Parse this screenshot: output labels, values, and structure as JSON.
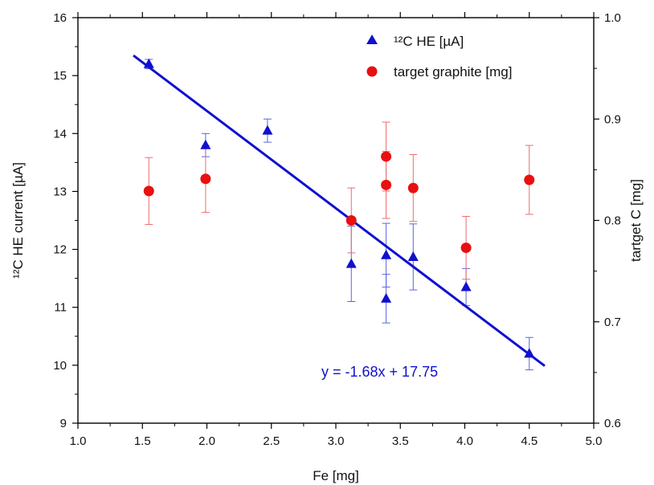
{
  "chart_data": {
    "type": "scatter",
    "xlabel": "Fe [mg]",
    "ylabel_left": "¹²C HE current [µA]",
    "ylabel_right": "tartget C [mg]",
    "xlim": [
      1.0,
      5.0
    ],
    "ylim_left": [
      9,
      16
    ],
    "ylim_right": [
      0.6,
      1.0
    ],
    "x_ticks": [
      1.0,
      1.5,
      2.0,
      2.5,
      3.0,
      3.5,
      4.0,
      4.5,
      5.0
    ],
    "y_left_ticks": [
      9,
      10,
      11,
      12,
      13,
      14,
      15,
      16
    ],
    "y_right_ticks": [
      0.6,
      0.7,
      0.8,
      0.9,
      1.0
    ],
    "x_tick_labels": [
      "1.0",
      "1.5",
      "2.0",
      "2.5",
      "3.0",
      "3.5",
      "4.0",
      "4.5",
      "5.0"
    ],
    "y_left_tick_labels": [
      "9",
      "10",
      "11",
      "12",
      "13",
      "14",
      "15",
      "16"
    ],
    "y_right_tick_labels": [
      "0.6",
      "0.7",
      "0.8",
      "0.9",
      "1.0"
    ],
    "grid": false,
    "legend_position": "top-right",
    "series": [
      {
        "name": "¹²C HE [µA]",
        "axis": "left",
        "marker": "triangle",
        "color": "#1010d0",
        "points": [
          {
            "x": 1.55,
            "y": 15.2,
            "err": 0.08
          },
          {
            "x": 1.99,
            "y": 13.8,
            "err": 0.2
          },
          {
            "x": 2.47,
            "y": 14.05,
            "err": 0.2
          },
          {
            "x": 3.12,
            "y": 11.75,
            "err": 0.65
          },
          {
            "x": 3.39,
            "y": 11.9,
            "err": 0.55
          },
          {
            "x": 3.39,
            "y": 11.15,
            "err": 0.42
          },
          {
            "x": 3.6,
            "y": 11.87,
            "err": 0.57
          },
          {
            "x": 4.01,
            "y": 11.35,
            "err": 0.32
          },
          {
            "x": 4.5,
            "y": 10.2,
            "err": 0.28
          }
        ]
      },
      {
        "name": "target graphite [mg]",
        "axis": "right",
        "marker": "circle",
        "color": "#e81010",
        "points": [
          {
            "x": 1.55,
            "y": 0.829,
            "err": 0.033
          },
          {
            "x": 1.99,
            "y": 0.841,
            "err": 0.033
          },
          {
            "x": 3.12,
            "y": 0.8,
            "err": 0.032
          },
          {
            "x": 3.39,
            "y": 0.863,
            "err": 0.034
          },
          {
            "x": 3.39,
            "y": 0.835,
            "err": 0.033
          },
          {
            "x": 3.6,
            "y": 0.832,
            "err": 0.033
          },
          {
            "x": 4.01,
            "y": 0.773,
            "err": 0.031
          },
          {
            "x": 4.5,
            "y": 0.84,
            "err": 0.034
          }
        ]
      }
    ],
    "fit_line": {
      "axis": "left",
      "slope": -1.68,
      "intercept": 17.75,
      "x_range": [
        1.43,
        4.62
      ],
      "color": "#1010d0",
      "label": "y = -1.68x + 17.75"
    }
  }
}
